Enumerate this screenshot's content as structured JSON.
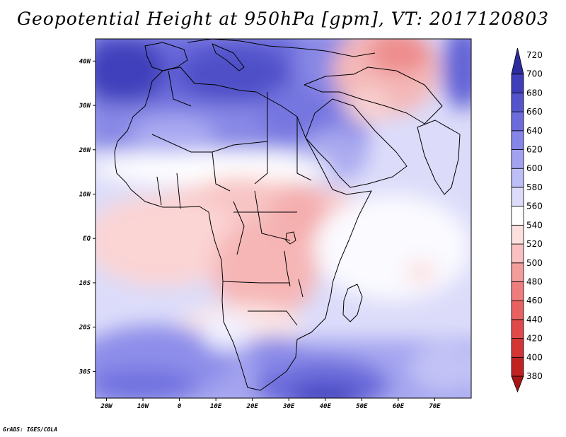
{
  "title": "Geopotential Height at 950hPa [gpm], VT: 2017120803",
  "credit": "GrADS: IGES/COLA",
  "map": {
    "lon_range": [
      -23,
      80
    ],
    "lat_range": [
      -36,
      45
    ],
    "x_ticks": [
      {
        "lon": -20,
        "label": "20W"
      },
      {
        "lon": -10,
        "label": "10W"
      },
      {
        "lon": 0,
        "label": "0"
      },
      {
        "lon": 10,
        "label": "10E"
      },
      {
        "lon": 20,
        "label": "20E"
      },
      {
        "lon": 30,
        "label": "30E"
      },
      {
        "lon": 40,
        "label": "40E"
      },
      {
        "lon": 50,
        "label": "50E"
      },
      {
        "lon": 60,
        "label": "60E"
      },
      {
        "lon": 70,
        "label": "70E"
      }
    ],
    "y_ticks": [
      {
        "lat": 40,
        "label": "40N"
      },
      {
        "lat": 30,
        "label": "30N"
      },
      {
        "lat": 20,
        "label": "20N"
      },
      {
        "lat": 10,
        "label": "10N"
      },
      {
        "lat": 0,
        "label": "EQ"
      },
      {
        "lat": -10,
        "label": "10S"
      },
      {
        "lat": -20,
        "label": "20S"
      },
      {
        "lat": -30,
        "label": "30S"
      }
    ]
  },
  "colorbar": {
    "levels": [
      {
        "value": "380",
        "color": "#a81616"
      },
      {
        "value": "400",
        "color": "#c02222"
      },
      {
        "value": "420",
        "color": "#d33535"
      },
      {
        "value": "440",
        "color": "#e04a4a"
      },
      {
        "value": "460",
        "color": "#e86262"
      },
      {
        "value": "480",
        "color": "#ee7e7e"
      },
      {
        "value": "500",
        "color": "#f39c9c"
      },
      {
        "value": "520",
        "color": "#f8c0c0"
      },
      {
        "value": "540",
        "color": "#fce0e0"
      },
      {
        "value": "560",
        "color": "#ffffff"
      },
      {
        "value": "580",
        "color": "#dcdcfa"
      },
      {
        "value": "600",
        "color": "#bebef6"
      },
      {
        "value": "620",
        "color": "#a2a2f0"
      },
      {
        "value": "640",
        "color": "#8686e8"
      },
      {
        "value": "660",
        "color": "#6c6cdc"
      },
      {
        "value": "680",
        "color": "#5454cc"
      },
      {
        "value": "700",
        "color": "#3e3eb8"
      },
      {
        "value": "720",
        "color": "#2c2ca0"
      }
    ]
  }
}
